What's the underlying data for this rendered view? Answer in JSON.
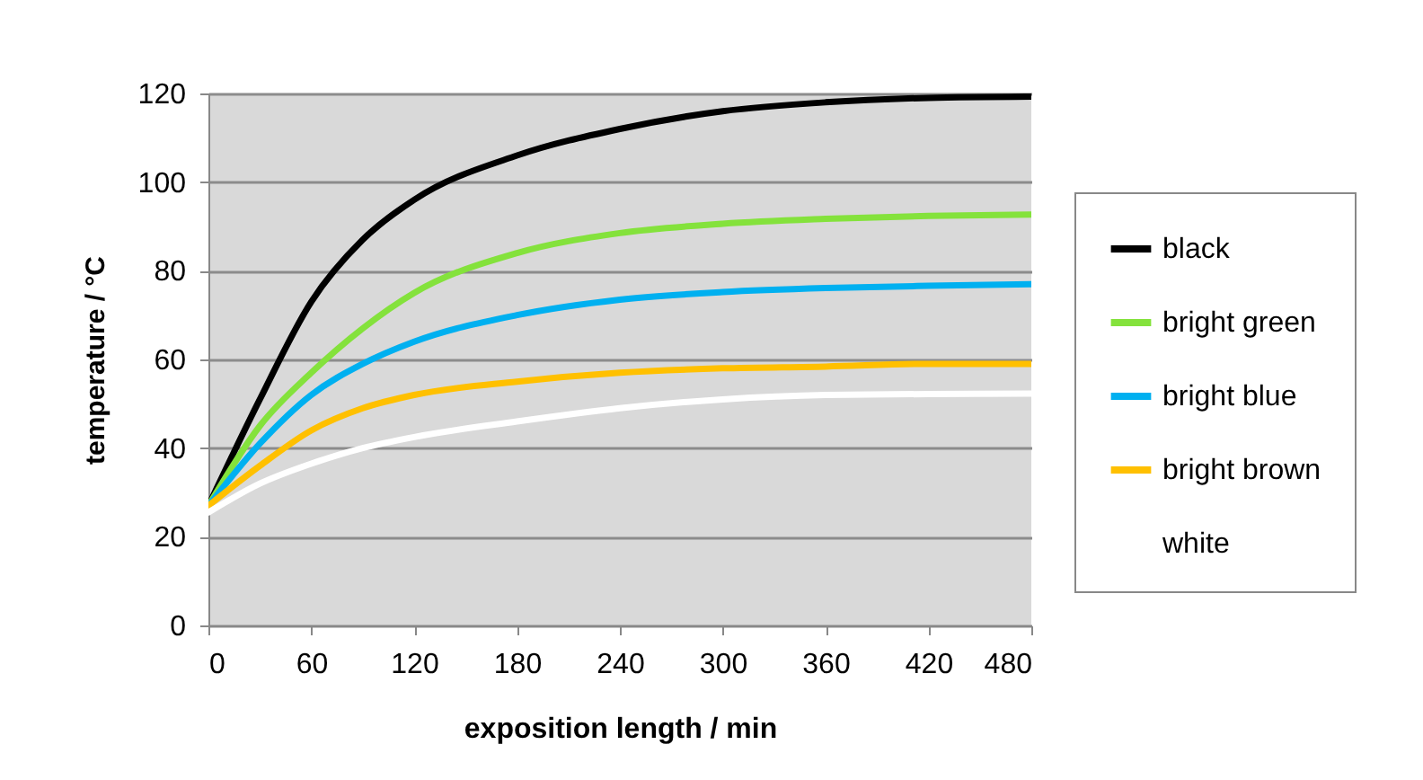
{
  "chart_data": {
    "type": "line",
    "xlabel": "exposition length / min",
    "ylabel": "temperature / °C",
    "x": [
      0,
      30,
      60,
      90,
      120,
      180,
      240,
      300,
      360,
      420,
      480
    ],
    "series": [
      {
        "name": "black",
        "color": "#000000",
        "values": [
          27,
          51,
          73,
          87,
          96,
          106,
          112,
          116,
          118,
          119,
          119.3
        ]
      },
      {
        "name": "bright green",
        "color": "#84e23c",
        "values": [
          27,
          45,
          57,
          67,
          75,
          84,
          88.5,
          90.6,
          91.7,
          92.4,
          92.7
        ]
      },
      {
        "name": "bright blue",
        "color": "#00b0f0",
        "values": [
          27,
          41,
          52,
          59,
          64,
          70,
          73.5,
          75.2,
          76.1,
          76.6,
          77
        ]
      },
      {
        "name": "bright brown",
        "color": "#ffc000",
        "values": [
          27,
          36,
          44,
          49,
          52,
          55,
          57,
          58,
          58.4,
          59,
          59
        ]
      },
      {
        "name": "white",
        "color": "#ffffff",
        "values": [
          25.5,
          32,
          36.5,
          40,
          42.5,
          46,
          49,
          51,
          52,
          52.2,
          52.3
        ]
      }
    ],
    "xlim": [
      0,
      480
    ],
    "xticks": [
      0,
      60,
      120,
      180,
      240,
      300,
      360,
      420,
      480
    ],
    "ylim": [
      0,
      120
    ],
    "yticks": [
      0,
      20,
      40,
      60,
      80,
      100,
      120
    ],
    "grid": "y",
    "legend": "right"
  }
}
